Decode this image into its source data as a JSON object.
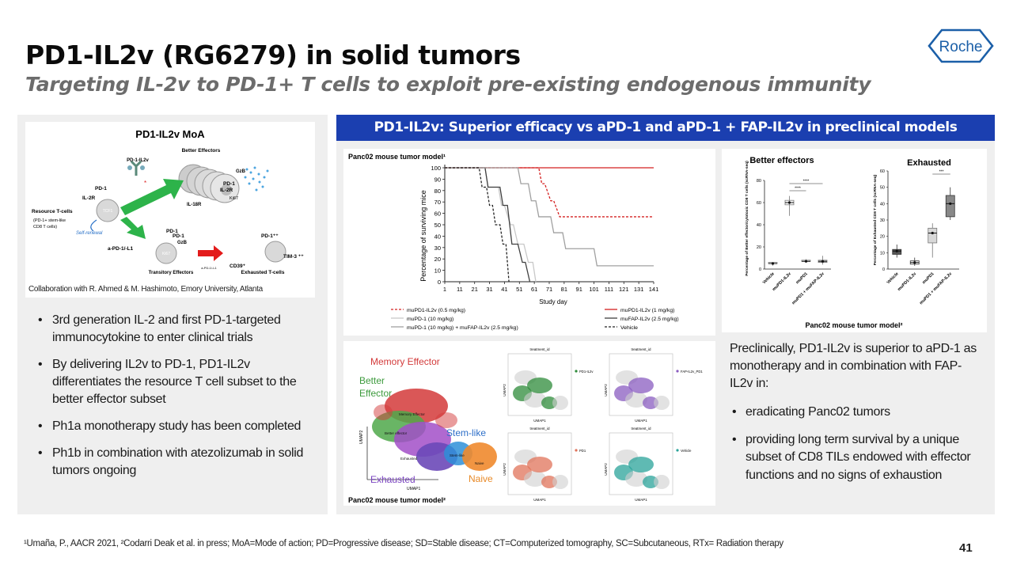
{
  "header": {
    "title": "PD1-IL2v (RG6279) in solid tumors",
    "subtitle": "Targeting IL-2v to PD-1+ T cells to exploit pre-existing endogenous immunity",
    "logo_text": "Roche"
  },
  "left": {
    "mechanism": {
      "title": "PD1-IL2v MoA",
      "labels": {
        "better_effectors": "Better Effectors",
        "pd1_il2v": "PD-1-IL2v",
        "il2r": "IL-2R",
        "pd1": "PD-1",
        "resource": "Resource T-cells",
        "resource_sub1": "(PD-1+ stem-like",
        "resource_sub2": "CD8 T cells)",
        "self_renewal": "Self-renewal",
        "tcf1": "TCF1",
        "ki67": "Ki67",
        "gzb": "GzB",
        "il18r": "IL-18R",
        "il2r_b": "IL-2R",
        "pd1_b": "PD-1",
        "apd1": "a-PD-1/-L1",
        "pd1_t": "PD-1",
        "pd1_t2": "PD-1",
        "gzb_t": "GzB",
        "ki67_t": "Ki67",
        "transitory": "Transitory Effectors",
        "apd1_small": "a-PD-1/-L1",
        "pd1pp": "PD-1⁺⁺",
        "cd39": "CD39⁺",
        "tim3": "TIM-3 ⁺⁺",
        "exhausted": "Exhausted T-cells"
      }
    },
    "collaboration": "Collaboration with R. Ahmed & M. Hashimoto, Emory University, Atlanta",
    "bullets": [
      "3rd generation IL-2 and first PD-1-targeted immunocytokine  to enter clinical trials",
      "By delivering IL2v to PD-1, PD1-IL2v differentiates the resource T cell subset to the better effector subset",
      "Ph1a monotherapy study has been completed",
      "Ph1b in combination with atezolizumab in solid tumors ongoing"
    ]
  },
  "right": {
    "banner": "PD1-IL2v: Superior efficacy vs aPD-1 and aPD-1 + FAP-IL2v in preclinical models",
    "km_title": "Panc02 mouse tumor model¹",
    "box_footer": "Panc02 mouse tumor model²",
    "umap_footer": "Panc02 mouse tumor model²",
    "text_intro": "Preclinically, PD1-IL2v is superior to aPD-1 as monotherapy and in combination with FAP-IL2v in:",
    "text_bullets": [
      "eradicating Panc02 tumors",
      "providing long term survival by a unique subset of CD8 TILs endowed with effector functions and no signs of exhaustion"
    ],
    "umap": {
      "labels": {
        "memory": "Memory Effector",
        "better": "Better",
        "effector": "Effector",
        "stem": "Stem-like",
        "exhausted": "Exhausted",
        "naive": "Naive",
        "memory_small": "Memory Effector",
        "better_small": "Better effector",
        "exhausted_small": "Exhausted",
        "stem_small": "Stem-like",
        "naive_small": "Naive",
        "umap1": "UMAP1",
        "umap2": "UMAP2"
      },
      "panels": [
        {
          "header": "treatment_id",
          "legend": "PD1-IL2v",
          "color": "#2e8b3a"
        },
        {
          "header": "treatment_id",
          "legend": "FAP-IL2v_PD1",
          "color": "#8a5cc0"
        },
        {
          "header": "treatment_id",
          "legend": "PD1",
          "color": "#e0735a"
        },
        {
          "header": "treatment_id",
          "legend": "Vehicle",
          "color": "#2aa39a"
        }
      ]
    }
  },
  "chart_data": [
    {
      "type": "line",
      "subtype": "kaplan-meier step",
      "title": "Panc02 mouse tumor model¹",
      "xlabel": "Study day",
      "ylabel": "Percentage of surviving mice",
      "xlim": [
        1,
        141
      ],
      "ylim": [
        0,
        100
      ],
      "xticks": [
        "1",
        "11",
        "21",
        "31",
        "41",
        "51",
        "61",
        "71",
        "81",
        "91",
        "101",
        "111",
        "121",
        "131",
        "141"
      ],
      "yticks": [
        "0",
        "10",
        "20",
        "30",
        "40",
        "50",
        "60",
        "70",
        "80",
        "90",
        "100"
      ],
      "series": [
        {
          "name": "muPD1-IL2v (0.5 mg/kg)",
          "color": "#d42020",
          "dash": "dashed",
          "x": [
            1,
            64,
            66,
            68,
            72,
            74,
            78,
            80,
            87,
            89,
            141
          ],
          "y": [
            100,
            100,
            86,
            86,
            71,
            71,
            57,
            57,
            57,
            57,
            57
          ]
        },
        {
          "name": "muPD1-IL2v (1 mg/kg)",
          "color": "#d42020",
          "dash": "solid",
          "x": [
            1,
            141
          ],
          "y": [
            100,
            100
          ]
        },
        {
          "name": "muPD-1 (10 mg/kg)",
          "color": "#c8c8c8",
          "dash": "solid",
          "x": [
            1,
            28,
            30,
            37,
            39,
            41,
            45,
            47,
            50,
            54,
            57,
            60,
            62
          ],
          "y": [
            100,
            100,
            83,
            83,
            67,
            67,
            50,
            50,
            33,
            33,
            17,
            17,
            0
          ]
        },
        {
          "name": "muFAP-IL2v (2.5 mg/kg)",
          "color": "#404040",
          "dash": "solid",
          "x": [
            1,
            28,
            30,
            38,
            40,
            43,
            46,
            50,
            53,
            55,
            58
          ],
          "y": [
            100,
            100,
            83,
            83,
            67,
            67,
            33,
            33,
            17,
            17,
            0
          ]
        },
        {
          "name": "muPD-1 (10 mg/kg) + muFAP-IL2v (2.5 mg/kg)",
          "color": "#a0a0a0",
          "dash": "solid",
          "x": [
            1,
            50,
            52,
            57,
            59,
            62,
            64,
            72,
            74,
            80,
            82,
            101,
            103,
            141
          ],
          "y": [
            100,
            100,
            86,
            86,
            71,
            71,
            57,
            57,
            43,
            43,
            29,
            29,
            14,
            14
          ]
        },
        {
          "name": "Vehicle",
          "color": "#222222",
          "dash": "dashed",
          "x": [
            1,
            24,
            26,
            29,
            31,
            33,
            35,
            38,
            40,
            42,
            44
          ],
          "y": [
            100,
            100,
            83,
            83,
            67,
            67,
            50,
            50,
            33,
            33,
            0
          ]
        }
      ]
    },
    {
      "type": "box",
      "title": "Better effectors",
      "ylabel": "Percentage of Better effector/cytotoxic CD8 T cells (scRNA-seq)",
      "ylim": [
        0,
        80
      ],
      "yticks": [
        "0",
        "20",
        "40",
        "60",
        "80"
      ],
      "categories": [
        "Vehicle",
        "muPD1-IL2v",
        "muPD1",
        "muPD1 + muFAP-IL2v"
      ],
      "values": [
        5,
        60,
        7,
        7
      ],
      "significance": [
        "****",
        "****"
      ]
    },
    {
      "type": "box",
      "title": "Exhausted",
      "ylabel": "Percentage of Exhausted CD8 T cells (scRNA-seq)",
      "ylim": [
        0,
        60
      ],
      "yticks": [
        "0",
        "10",
        "20",
        "30",
        "40",
        "50",
        "60"
      ],
      "categories": [
        "Vehicle",
        "muPD1-IL2v",
        "muPD1",
        "muPD1 + muFAP-IL2v"
      ],
      "values": [
        11,
        4,
        22,
        40
      ],
      "significance": [
        "***"
      ]
    }
  ],
  "footer": {
    "footnote": "¹Umaña, P., AACR 2021, ²Codarri Deak et al. in press; MoA=Mode of action; PD=Progressive disease; SD=Stable disease; CT=Computerized tomography, SC=Subcutaneous, RTx= Radiation therapy",
    "page": "41"
  }
}
